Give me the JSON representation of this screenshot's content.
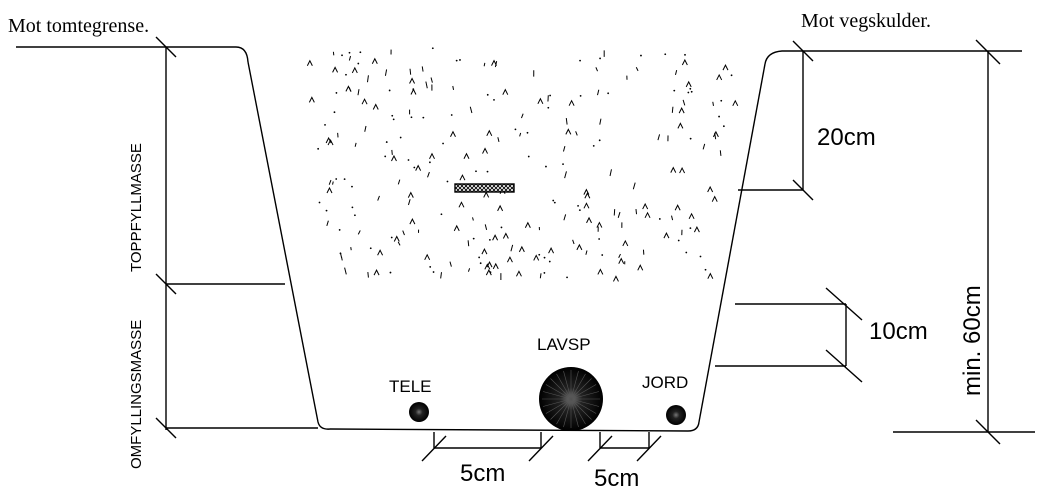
{
  "labels": {
    "left_direction": "Mot tomtegrense.",
    "right_direction": "Mot vegskulder.",
    "top_fill": "TOPPFYLLMASSE",
    "surround_fill": "OMFYLLINGSMASSE",
    "dim_20": "20cm",
    "dim_10": "10cm",
    "dim_min60": "min. 60cm",
    "dim_5_left": "5cm",
    "dim_5_right": "5cm"
  },
  "cables": {
    "tele": "TELE",
    "lavsp": "LAVSP",
    "jord": "JORD"
  }
}
